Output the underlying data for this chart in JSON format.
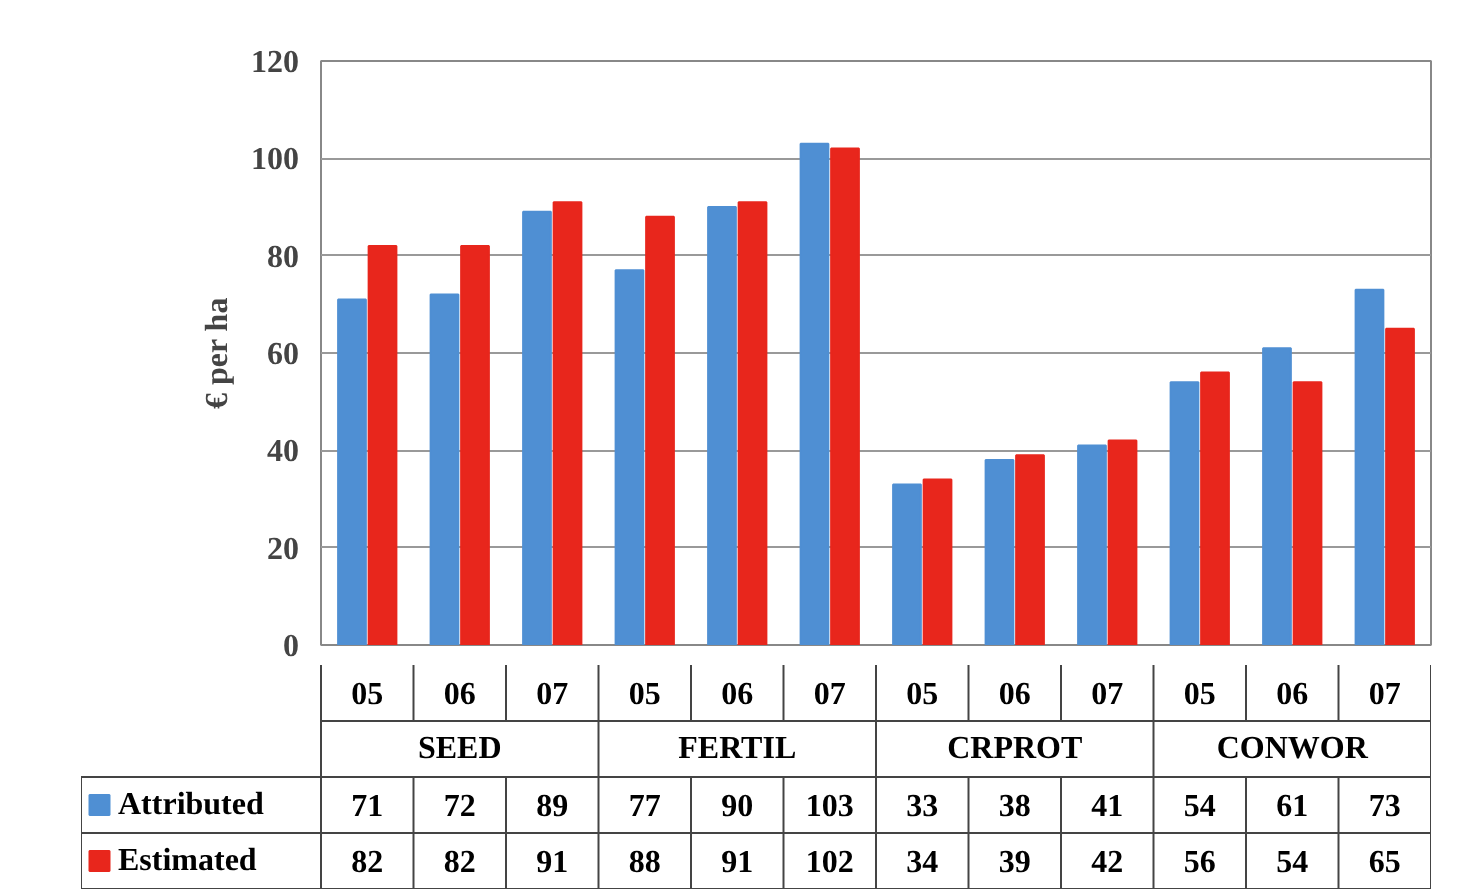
{
  "chart_data": {
    "type": "bar",
    "ylabel": "€ per ha",
    "categories": [
      "05",
      "06",
      "07",
      "05",
      "06",
      "07",
      "05",
      "06",
      "07",
      "05",
      "06",
      "07"
    ],
    "series": [
      {
        "name": "Attributed",
        "color": "#4f8fd3",
        "values": [
          71,
          72,
          89,
          77,
          90,
          103,
          33,
          38,
          41,
          54,
          61,
          73
        ]
      },
      {
        "name": "Estimated",
        "color": "#e8261c",
        "values": [
          82,
          82,
          91,
          88,
          91,
          102,
          34,
          39,
          42,
          56,
          54,
          65
        ]
      }
    ],
    "annotations": [
      "SEED",
      "FERTIL",
      "CRPROT",
      "CONWOR"
    ],
    "ylim": [
      0,
      120
    ],
    "yticks": [
      0,
      20,
      40,
      60,
      80,
      100,
      120
    ],
    "grid": "y",
    "legend": "bottom left",
    "data_labels": true
  }
}
